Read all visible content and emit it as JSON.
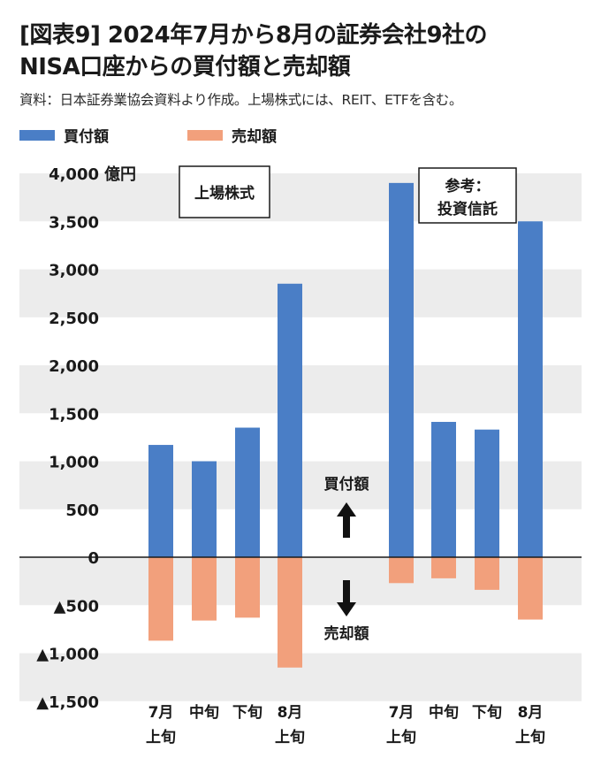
{
  "header": {
    "title_line1": "[図表9] 2024年7月から8月の証券会社9社の",
    "title_line2": "NISA口座からの買付額と売却額",
    "source": "資料：日本証券業協会資料より作成。上場株式には、REIT、ETFを含む。"
  },
  "legend": {
    "buy_label": "買付額",
    "sell_label": "売却額"
  },
  "colors": {
    "buy": "#4a7ec6",
    "sell": "#f2a07c",
    "band": "#ececec"
  },
  "chart_data": {
    "type": "bar",
    "y_unit_label": "億円",
    "ylim": [
      -1500,
      4000
    ],
    "y_ticks": [
      4000,
      3500,
      3000,
      2500,
      2000,
      1500,
      1000,
      500,
      0,
      -500,
      -1000,
      -1500
    ],
    "y_tick_labels": [
      "4,000",
      "3,500",
      "3,000",
      "2,500",
      "2,000",
      "1,500",
      "1,000",
      "500",
      "0",
      "▲500",
      "▲1,000",
      "▲1,500"
    ],
    "groups": [
      {
        "label": "上場株式",
        "categories": [
          {
            "line1": "7月",
            "line2": "上旬"
          },
          {
            "line1": "中旬",
            "line2": ""
          },
          {
            "line1": "下旬",
            "line2": ""
          },
          {
            "line1": "8月",
            "line2": "上旬"
          }
        ],
        "series": [
          {
            "name": "買付額",
            "values": [
              1170,
              1000,
              1350,
              2850
            ]
          },
          {
            "name": "売却額",
            "values": [
              -870,
              -660,
              -630,
              -1150
            ]
          }
        ]
      },
      {
        "label_line1": "参考：",
        "label_line2": "投資信託",
        "categories": [
          {
            "line1": "7月",
            "line2": "上旬"
          },
          {
            "line1": "中旬",
            "line2": ""
          },
          {
            "line1": "下旬",
            "line2": ""
          },
          {
            "line1": "8月",
            "line2": "上旬"
          }
        ],
        "series": [
          {
            "name": "買付額",
            "values": [
              3900,
              1410,
              1330,
              3500
            ]
          },
          {
            "name": "売却額",
            "values": [
              -270,
              -220,
              -340,
              -650
            ]
          }
        ]
      }
    ],
    "annotations": {
      "up_label": "買付額",
      "down_label": "売却額"
    },
    "grid": "alternating bands",
    "legend_position": "top-left"
  }
}
